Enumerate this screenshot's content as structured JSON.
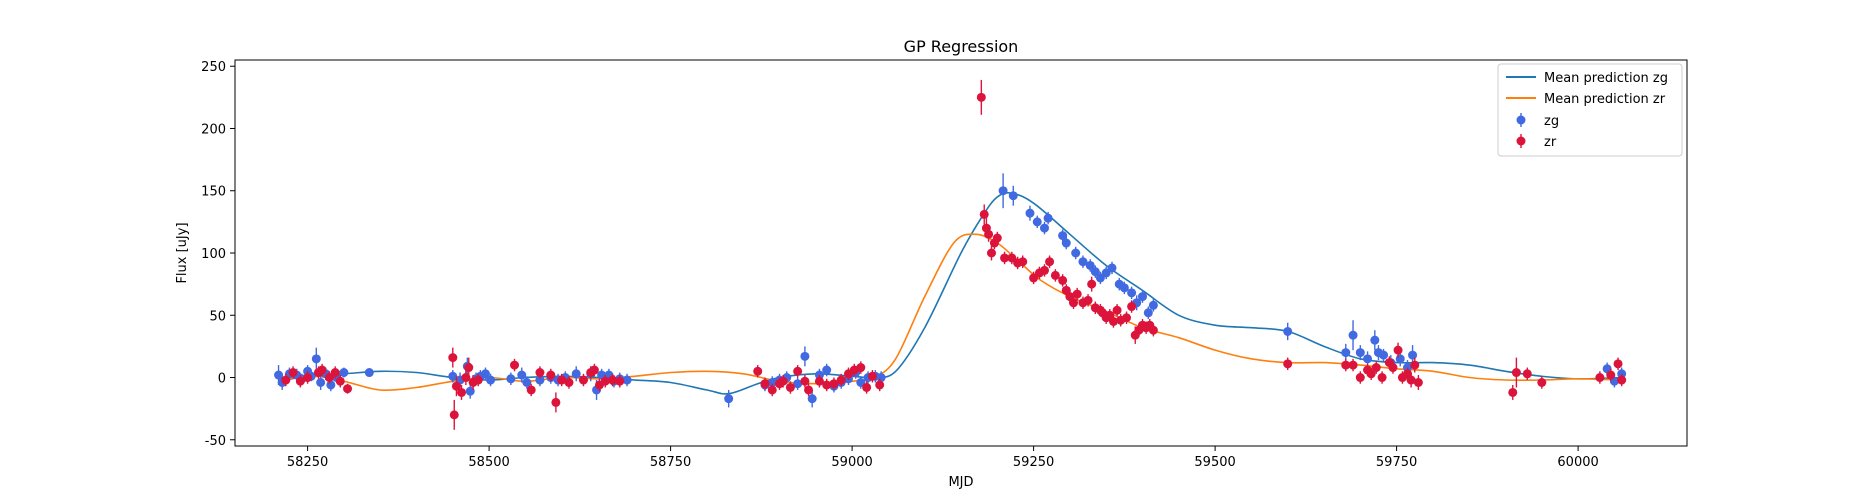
{
  "chart_data": {
    "type": "scatter",
    "title": "GP Regression",
    "xlabel": "MJD",
    "ylabel": "Flux [uJy]",
    "xlim": [
      58150,
      60150
    ],
    "ylim": [
      -55,
      255
    ],
    "xticks": [
      58250,
      58500,
      58750,
      59000,
      59250,
      59500,
      59750,
      60000
    ],
    "yticks": [
      -50,
      0,
      50,
      100,
      150,
      200,
      250
    ],
    "legend_position": "top-right",
    "legend": [
      "Mean prediction zg",
      "Mean prediction zr",
      "zg",
      "zr"
    ],
    "series": [
      {
        "name": "Mean prediction zg",
        "kind": "line",
        "color": "#1f77b4",
        "x": [
          58210,
          58260,
          58300,
          58350,
          58400,
          58450,
          58500,
          58550,
          58600,
          58650,
          58700,
          58750,
          58800,
          58830,
          58870,
          58900,
          58950,
          59000,
          59030,
          59060,
          59100,
          59150,
          59180,
          59200,
          59220,
          59250,
          59300,
          59350,
          59400,
          59450,
          59500,
          59550,
          59600,
          59650,
          59700,
          59750,
          59800,
          59850,
          59900,
          59950,
          60000,
          60060
        ],
        "y": [
          -3,
          2,
          3,
          5,
          4,
          0,
          -2,
          0,
          1,
          0,
          -2,
          -4,
          -10,
          -13,
          -5,
          0,
          3,
          1,
          0,
          5,
          40,
          100,
          130,
          145,
          148,
          140,
          115,
          90,
          70,
          50,
          42,
          40,
          37,
          25,
          15,
          12,
          12,
          10,
          5,
          1,
          -1,
          0
        ]
      },
      {
        "name": "Mean prediction zr",
        "kind": "line",
        "color": "#ff7f0e",
        "x": [
          58210,
          58260,
          58300,
          58350,
          58400,
          58450,
          58500,
          58550,
          58600,
          58650,
          58700,
          58750,
          58800,
          58850,
          58900,
          58950,
          59000,
          59030,
          59060,
          59100,
          59140,
          59170,
          59200,
          59230,
          59260,
          59300,
          59350,
          59400,
          59450,
          59500,
          59550,
          59600,
          59650,
          59700,
          59750,
          59800,
          59850,
          59900,
          59950,
          60000,
          60060
        ],
        "y": [
          -2,
          1,
          -3,
          -10,
          -8,
          -3,
          0,
          -3,
          0,
          -1,
          1,
          4,
          5,
          3,
          -3,
          -5,
          -3,
          0,
          15,
          65,
          108,
          115,
          108,
          93,
          78,
          65,
          53,
          40,
          32,
          22,
          15,
          12,
          12,
          10,
          7,
          5,
          0,
          -2,
          -2,
          -1,
          -2
        ]
      },
      {
        "name": "zg",
        "kind": "errorbar",
        "color": "#4169e1",
        "points": [
          [
            58210,
            2,
            8
          ],
          [
            58215,
            -4,
            6
          ],
          [
            58225,
            3,
            5
          ],
          [
            58235,
            2,
            5
          ],
          [
            58242,
            -1,
            4
          ],
          [
            58250,
            5,
            5
          ],
          [
            58255,
            1,
            4
          ],
          [
            58262,
            15,
            9
          ],
          [
            58268,
            -4,
            6
          ],
          [
            58275,
            3,
            5
          ],
          [
            58282,
            -6,
            5
          ],
          [
            58290,
            0,
            4
          ],
          [
            58300,
            4,
            4
          ],
          [
            58335,
            4,
            3
          ],
          [
            58450,
            1,
            5
          ],
          [
            58460,
            -2,
            6
          ],
          [
            58470,
            9,
            7
          ],
          [
            58474,
            -11,
            6
          ],
          [
            58482,
            -1,
            5
          ],
          [
            58488,
            1,
            5
          ],
          [
            58495,
            3,
            5
          ],
          [
            58502,
            -2,
            5
          ],
          [
            58530,
            -1,
            5
          ],
          [
            58545,
            2,
            6
          ],
          [
            58552,
            -4,
            5
          ],
          [
            58570,
            -2,
            5
          ],
          [
            58585,
            0,
            5
          ],
          [
            58595,
            -2,
            5
          ],
          [
            58605,
            0,
            5
          ],
          [
            58620,
            3,
            6
          ],
          [
            58640,
            3,
            6
          ],
          [
            58648,
            -10,
            8
          ],
          [
            58655,
            2,
            5
          ],
          [
            58665,
            2,
            5
          ],
          [
            58672,
            -3,
            5
          ],
          [
            58680,
            -1,
            5
          ],
          [
            58690,
            -2,
            5
          ],
          [
            58830,
            -17,
            7
          ],
          [
            58880,
            -6,
            5
          ],
          [
            58890,
            -4,
            5
          ],
          [
            58900,
            -2,
            5
          ],
          [
            58910,
            0,
            5
          ],
          [
            58925,
            -5,
            5
          ],
          [
            58935,
            17,
            8
          ],
          [
            58945,
            -17,
            7
          ],
          [
            58955,
            2,
            5
          ],
          [
            58965,
            6,
            5
          ],
          [
            58975,
            -7,
            5
          ],
          [
            58985,
            -4,
            5
          ],
          [
            58995,
            -1,
            5
          ],
          [
            59005,
            4,
            5
          ],
          [
            59012,
            -4,
            5
          ],
          [
            59022,
            0,
            5
          ],
          [
            59032,
            1,
            5
          ],
          [
            59040,
            0,
            5
          ],
          [
            59208,
            150,
            14
          ],
          [
            59222,
            146,
            8
          ],
          [
            59245,
            132,
            6
          ],
          [
            59255,
            125,
            5
          ],
          [
            59265,
            120,
            5
          ],
          [
            59270,
            128,
            5
          ],
          [
            59290,
            114,
            5
          ],
          [
            59295,
            108,
            5
          ],
          [
            59308,
            100,
            5
          ],
          [
            59318,
            93,
            5
          ],
          [
            59328,
            90,
            5
          ],
          [
            59335,
            85,
            5
          ],
          [
            59342,
            80,
            5
          ],
          [
            59350,
            84,
            5
          ],
          [
            59358,
            88,
            5
          ],
          [
            59368,
            75,
            5
          ],
          [
            59375,
            72,
            5
          ],
          [
            59385,
            68,
            5
          ],
          [
            59392,
            60,
            6
          ],
          [
            59400,
            65,
            5
          ],
          [
            59408,
            52,
            5
          ],
          [
            59415,
            58,
            5
          ],
          [
            59600,
            37,
            7
          ],
          [
            59680,
            20,
            7
          ],
          [
            59690,
            34,
            12
          ],
          [
            59700,
            20,
            6
          ],
          [
            59710,
            15,
            6
          ],
          [
            59720,
            30,
            8
          ],
          [
            59725,
            20,
            6
          ],
          [
            59732,
            18,
            5
          ],
          [
            59742,
            12,
            6
          ],
          [
            59755,
            15,
            6
          ],
          [
            59765,
            8,
            6
          ],
          [
            59772,
            18,
            8
          ],
          [
            60040,
            7,
            5
          ],
          [
            60050,
            -3,
            5
          ],
          [
            60060,
            3,
            5
          ]
        ]
      },
      {
        "name": "zr",
        "kind": "errorbar",
        "color": "#dc143c",
        "points": [
          [
            58220,
            -2,
            5
          ],
          [
            58230,
            4,
            5
          ],
          [
            58240,
            -3,
            5
          ],
          [
            58250,
            0,
            5
          ],
          [
            58265,
            4,
            5
          ],
          [
            58270,
            6,
            5
          ],
          [
            58280,
            0,
            5
          ],
          [
            58288,
            4,
            5
          ],
          [
            58295,
            -3,
            5
          ],
          [
            58305,
            -9,
            4
          ],
          [
            58450,
            16,
            8
          ],
          [
            58452,
            -30,
            12
          ],
          [
            58455,
            -7,
            8
          ],
          [
            58462,
            -12,
            6
          ],
          [
            58468,
            0,
            6
          ],
          [
            58472,
            8,
            8
          ],
          [
            58478,
            -4,
            6
          ],
          [
            58485,
            -2,
            5
          ],
          [
            58535,
            10,
            5
          ],
          [
            58558,
            -10,
            5
          ],
          [
            58570,
            4,
            5
          ],
          [
            58585,
            2,
            5
          ],
          [
            58592,
            -20,
            8
          ],
          [
            58600,
            -2,
            5
          ],
          [
            58610,
            -4,
            5
          ],
          [
            58630,
            -2,
            5
          ],
          [
            58640,
            4,
            5
          ],
          [
            58645,
            6,
            5
          ],
          [
            58652,
            -6,
            5
          ],
          [
            58660,
            -3,
            5
          ],
          [
            58670,
            -2,
            5
          ],
          [
            58680,
            -3,
            5
          ],
          [
            58870,
            5,
            5
          ],
          [
            58880,
            -5,
            5
          ],
          [
            58890,
            -10,
            5
          ],
          [
            58900,
            -5,
            5
          ],
          [
            58905,
            -3,
            5
          ],
          [
            58915,
            -8,
            5
          ],
          [
            58925,
            5,
            5
          ],
          [
            58935,
            -3,
            5
          ],
          [
            58940,
            -10,
            5
          ],
          [
            58955,
            -3,
            5
          ],
          [
            58965,
            -6,
            5
          ],
          [
            58975,
            -5,
            5
          ],
          [
            58985,
            -2,
            5
          ],
          [
            58995,
            3,
            5
          ],
          [
            59003,
            6,
            5
          ],
          [
            59012,
            8,
            5
          ],
          [
            59020,
            -8,
            5
          ],
          [
            59028,
            1,
            5
          ],
          [
            59038,
            -6,
            5
          ],
          [
            59178,
            225,
            14
          ],
          [
            59182,
            131,
            8
          ],
          [
            59185,
            120,
            8
          ],
          [
            59188,
            115,
            6
          ],
          [
            59192,
            100,
            6
          ],
          [
            59196,
            108,
            5
          ],
          [
            59200,
            112,
            5
          ],
          [
            59210,
            96,
            5
          ],
          [
            59220,
            96,
            5
          ],
          [
            59228,
            92,
            5
          ],
          [
            59235,
            93,
            5
          ],
          [
            59250,
            80,
            5
          ],
          [
            59258,
            84,
            5
          ],
          [
            59265,
            86,
            5
          ],
          [
            59272,
            93,
            5
          ],
          [
            59280,
            82,
            5
          ],
          [
            59290,
            78,
            5
          ],
          [
            59295,
            70,
            5
          ],
          [
            59300,
            65,
            6
          ],
          [
            59305,
            60,
            5
          ],
          [
            59310,
            67,
            5
          ],
          [
            59318,
            60,
            5
          ],
          [
            59325,
            62,
            5
          ],
          [
            59330,
            75,
            6
          ],
          [
            59335,
            56,
            5
          ],
          [
            59342,
            54,
            5
          ],
          [
            59345,
            52,
            5
          ],
          [
            59350,
            48,
            5
          ],
          [
            59355,
            50,
            5
          ],
          [
            59360,
            45,
            5
          ],
          [
            59365,
            54,
            5
          ],
          [
            59370,
            46,
            5
          ],
          [
            59378,
            48,
            5
          ],
          [
            59385,
            57,
            5
          ],
          [
            59390,
            34,
            7
          ],
          [
            59395,
            38,
            5
          ],
          [
            59400,
            42,
            5
          ],
          [
            59405,
            40,
            5
          ],
          [
            59410,
            42,
            5
          ],
          [
            59415,
            38,
            5
          ],
          [
            59600,
            11,
            5
          ],
          [
            59680,
            10,
            5
          ],
          [
            59690,
            10,
            5
          ],
          [
            59700,
            0,
            5
          ],
          [
            59710,
            6,
            5
          ],
          [
            59715,
            3,
            5
          ],
          [
            59722,
            8,
            5
          ],
          [
            59730,
            0,
            5
          ],
          [
            59740,
            12,
            5
          ],
          [
            59745,
            8,
            5
          ],
          [
            59752,
            22,
            6
          ],
          [
            59758,
            0,
            5
          ],
          [
            59765,
            3,
            5
          ],
          [
            59770,
            -2,
            6
          ],
          [
            59775,
            10,
            6
          ],
          [
            59780,
            -4,
            6
          ],
          [
            59910,
            -12,
            6
          ],
          [
            59915,
            4,
            12
          ],
          [
            59930,
            3,
            5
          ],
          [
            59950,
            -4,
            5
          ],
          [
            60030,
            0,
            5
          ],
          [
            60045,
            2,
            5
          ],
          [
            60055,
            11,
            5
          ],
          [
            60060,
            -2,
            5
          ]
        ]
      }
    ]
  }
}
